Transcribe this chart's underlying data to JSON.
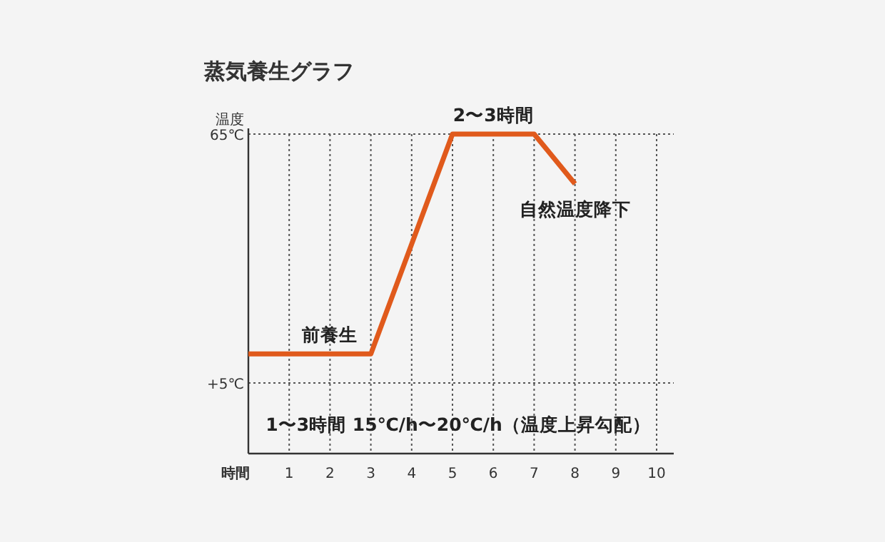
{
  "chart_data": {
    "type": "line",
    "title": "蒸気養生グラフ",
    "xlabel": "時間",
    "ylabel": "温度",
    "x": [
      0,
      3,
      5,
      7,
      8
    ],
    "series": [
      {
        "color": "#e05a1c",
        "values": [
          12,
          12,
          65,
          65,
          53
        ]
      }
    ],
    "xlim": [
      0,
      10
    ],
    "xticks": [
      1,
      2,
      3,
      4,
      5,
      6,
      7,
      8,
      9,
      10
    ],
    "ylim": [
      -12,
      65
    ],
    "yticks": [
      {
        "value": 5,
        "label": "+5℃"
      },
      {
        "value": 65,
        "label": "65℃"
      }
    ],
    "grid": true,
    "marker": "none",
    "line_style": "solid",
    "annotations": [
      {
        "text": "前養生",
        "x": 2,
        "y": 12
      },
      {
        "text": "2〜3時間",
        "x": 6,
        "y": 65
      },
      {
        "text": "自然温度降下",
        "x": 8,
        "y": 53
      },
      "1〜3時間 15℃/h〜20℃/h（温度上昇勾配）"
    ]
  }
}
